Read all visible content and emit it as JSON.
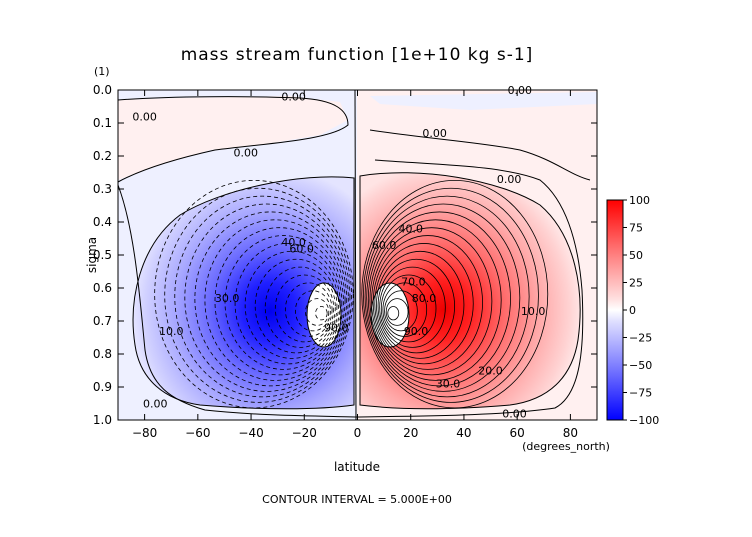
{
  "chart_data": {
    "type": "contour",
    "title": "mass stream function [1e+10 kg s-1]",
    "xlabel": "latitude",
    "xunit": "(degrees_north)",
    "ylabel": "sigma",
    "yunit": "(1)",
    "xlim": [
      -90,
      90
    ],
    "ylim": [
      0.0,
      1.0
    ],
    "y_inverted": true,
    "x_ticks": [
      -80,
      -60,
      -40,
      -20,
      0,
      20,
      40,
      60,
      80
    ],
    "x_tick_labels": [
      "−80",
      "−60",
      "−40",
      "−20",
      "0",
      "20",
      "40",
      "60",
      "80"
    ],
    "y_ticks": [
      0.0,
      0.1,
      0.2,
      0.3,
      0.4,
      0.5,
      0.6,
      0.7,
      0.8,
      0.9,
      1.0
    ],
    "y_tick_labels": [
      "0.0",
      "0.1",
      "0.2",
      "0.3",
      "0.4",
      "0.5",
      "0.6",
      "0.7",
      "0.8",
      "0.9",
      "1.0"
    ],
    "contour_interval": 5.0,
    "footer": "CONTOUR INTERVAL = 5.000E+00",
    "colorbar": {
      "range": [
        -100,
        100
      ],
      "ticks": [
        100,
        75,
        50,
        25,
        0,
        -25,
        -50,
        -75,
        -100
      ],
      "tick_labels": [
        "100",
        "75",
        "50",
        "25",
        "0",
        "−25",
        "−50",
        "−75",
        "−100"
      ],
      "colors": {
        "positive": "#ff0000",
        "zero": "#ffffff",
        "negative": "#0000ff"
      }
    },
    "cells": [
      {
        "name": "southern-cell",
        "sign": "negative",
        "center_lat": -12,
        "center_sigma": 0.68,
        "extent_lat": [
          -80,
          -1
        ],
        "extent_sigma": [
          0.25,
          0.98
        ],
        "core_value": -100
      },
      {
        "name": "northern-cell",
        "sign": "positive",
        "center_lat": 12,
        "center_sigma": 0.68,
        "extent_lat": [
          1,
          75
        ],
        "extent_sigma": [
          0.25,
          0.98
        ],
        "core_value": 100
      }
    ],
    "contour_labels": [
      {
        "text": "0.00",
        "lat": -24,
        "sigma": 0.02
      },
      {
        "text": "0.00",
        "lat": 61,
        "sigma": 0.0
      },
      {
        "text": "0.00",
        "lat": -80,
        "sigma": 0.08
      },
      {
        "text": "0.00",
        "lat": 29,
        "sigma": 0.13
      },
      {
        "text": "0.00",
        "lat": -42,
        "sigma": 0.19
      },
      {
        "text": "0.00",
        "lat": 57,
        "sigma": 0.27
      },
      {
        "text": "0.00",
        "lat": -76,
        "sigma": 0.95
      },
      {
        "text": "0.00",
        "lat": 59,
        "sigma": 0.98
      },
      {
        "text": "40.0",
        "lat": -24,
        "sigma": 0.46
      },
      {
        "text": "60.0",
        "lat": -21,
        "sigma": 0.48
      },
      {
        "text": "30.0",
        "lat": -49,
        "sigma": 0.63
      },
      {
        "text": "10.0",
        "lat": -70,
        "sigma": 0.73
      },
      {
        "text": "90.0",
        "lat": -8,
        "sigma": 0.72
      },
      {
        "text": "40.0",
        "lat": 20,
        "sigma": 0.42
      },
      {
        "text": "60.0",
        "lat": 10,
        "sigma": 0.47
      },
      {
        "text": "70.0",
        "lat": 21,
        "sigma": 0.58
      },
      {
        "text": "80.0",
        "lat": 25,
        "sigma": 0.63
      },
      {
        "text": "90.0",
        "lat": 22,
        "sigma": 0.73
      },
      {
        "text": "10.0",
        "lat": 66,
        "sigma": 0.67
      },
      {
        "text": "20.0",
        "lat": 50,
        "sigma": 0.85
      },
      {
        "text": "30.0",
        "lat": 34,
        "sigma": 0.89
      }
    ]
  }
}
